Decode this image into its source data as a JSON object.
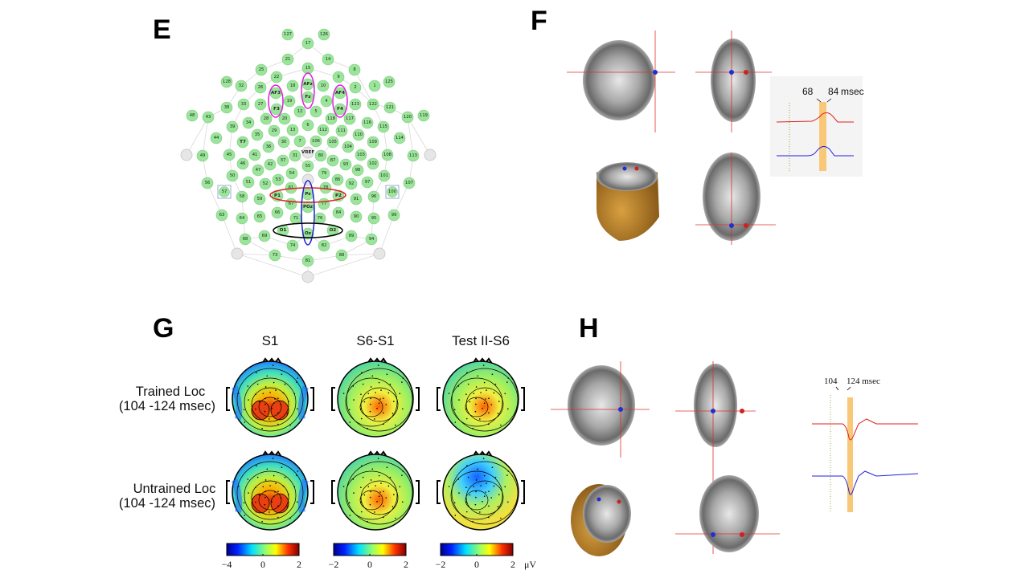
{
  "panels": {
    "e": "E",
    "f": "F",
    "g": "G",
    "h": "H"
  },
  "electrodes": [
    "127",
    "126",
    "17",
    "21",
    "14",
    "25",
    "15",
    "8",
    "22",
    "9",
    "128",
    "32",
    "26",
    "18",
    "AFz",
    "10",
    "2",
    "1",
    "125",
    "AF3",
    "Fz",
    "AF4",
    "19",
    "4",
    "38",
    "33",
    "27",
    "F3",
    "12",
    "5",
    "F4",
    "123",
    "122",
    "121",
    "48",
    "43",
    "28",
    "20",
    "6",
    "118",
    "117",
    "120",
    "119",
    "39",
    "34",
    "29",
    "13",
    "112",
    "111",
    "116",
    "115",
    "44",
    "35",
    "110",
    "114",
    "T7",
    "30",
    "7",
    "106",
    "105",
    "109",
    "36",
    "104",
    "VREF",
    "49",
    "45",
    "41",
    "31",
    "80",
    "103",
    "108",
    "113",
    "46",
    "42",
    "37",
    "87",
    "93",
    "102",
    "47",
    "98",
    "55",
    "54",
    "79",
    "50",
    "101",
    "56",
    "107",
    "51",
    "53",
    "86",
    "97",
    "52",
    "92",
    "57",
    "100",
    "58",
    "96",
    "61",
    "78",
    "P1",
    "Pz",
    "P2",
    "59",
    "91",
    "67",
    "77",
    "POz",
    "63",
    "99",
    "64",
    "95",
    "65",
    "90",
    "66",
    "84",
    "71",
    "76",
    "O1",
    "Oz",
    "O2",
    "68",
    "94",
    "69",
    "89",
    "74",
    "82",
    "73",
    "88",
    "81"
  ],
  "panel_f": {
    "erp": {
      "start_label": "68",
      "end_label": "84",
      "unit_label": "msec"
    }
  },
  "panel_h": {
    "erp": {
      "start_label": "104",
      "end_label": "124 msec"
    }
  },
  "panel_g": {
    "columns": [
      "S1",
      "S6-S1",
      "Test II-S6"
    ],
    "rows": [
      {
        "label": "Trained Loc",
        "window": "(104 -124 msec)"
      },
      {
        "label": "Untrained Loc",
        "window": "(104 -124 msec)"
      }
    ],
    "colorbars": [
      {
        "min": "−4",
        "mid": "0",
        "max": "2"
      },
      {
        "min": "−2",
        "mid": "0",
        "max": "2"
      },
      {
        "min": "−2",
        "mid": "0",
        "max": "2"
      }
    ],
    "unit": "μV"
  },
  "colors": {
    "electrode": "#9be59b",
    "magenta": "#e020e0",
    "red": "#e02020",
    "blue": "#2020d0",
    "highlight": "#f8c878"
  }
}
